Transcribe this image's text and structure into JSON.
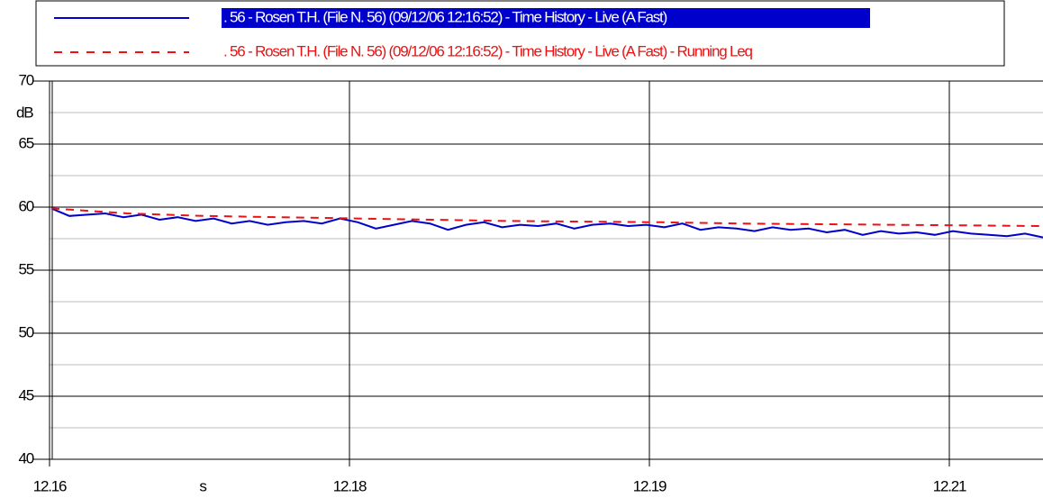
{
  "chart_data": {
    "type": "line",
    "y_label": "dB",
    "x_label": "s",
    "ylim": [
      40,
      70
    ],
    "yticks": [
      40,
      45,
      50,
      55,
      60,
      65,
      70
    ],
    "y_minor_step": 2.5,
    "xticks": [
      "12.16",
      "12.18",
      "12.19",
      "12.21"
    ],
    "grid": true,
    "series": [
      {
        "name": ". 56 - Rosen T.H.  (File N. 56) (09/12/06 12:16:52) - Time History - Live (A Fast)",
        "color": "#0000cc",
        "dash": false,
        "values": [
          59.9,
          59.3,
          59.4,
          59.5,
          59.2,
          59.4,
          59.0,
          59.2,
          58.9,
          59.1,
          58.7,
          58.9,
          58.6,
          58.8,
          58.9,
          58.7,
          59.1,
          58.8,
          58.3,
          58.6,
          58.9,
          58.7,
          58.2,
          58.6,
          58.8,
          58.4,
          58.6,
          58.5,
          58.7,
          58.3,
          58.6,
          58.7,
          58.5,
          58.6,
          58.4,
          58.7,
          58.2,
          58.4,
          58.3,
          58.1,
          58.4,
          58.2,
          58.3,
          58.0,
          58.2,
          57.8,
          58.1,
          57.9,
          58.0,
          57.8,
          58.1,
          57.9,
          57.8,
          57.7,
          57.9,
          57.6
        ]
      },
      {
        "name": ". 56 - Rosen T.H.  (File N. 56) (09/12/06 12:16:52) - Time History - Live (A Fast) - Running Leq",
        "color": "#ee1111",
        "dash": true,
        "values": [
          59.9,
          59.5,
          59.3,
          59.2,
          59.1,
          59.0,
          58.9,
          58.85,
          58.8,
          58.7,
          58.65,
          58.6,
          58.55,
          58.5
        ]
      }
    ]
  }
}
